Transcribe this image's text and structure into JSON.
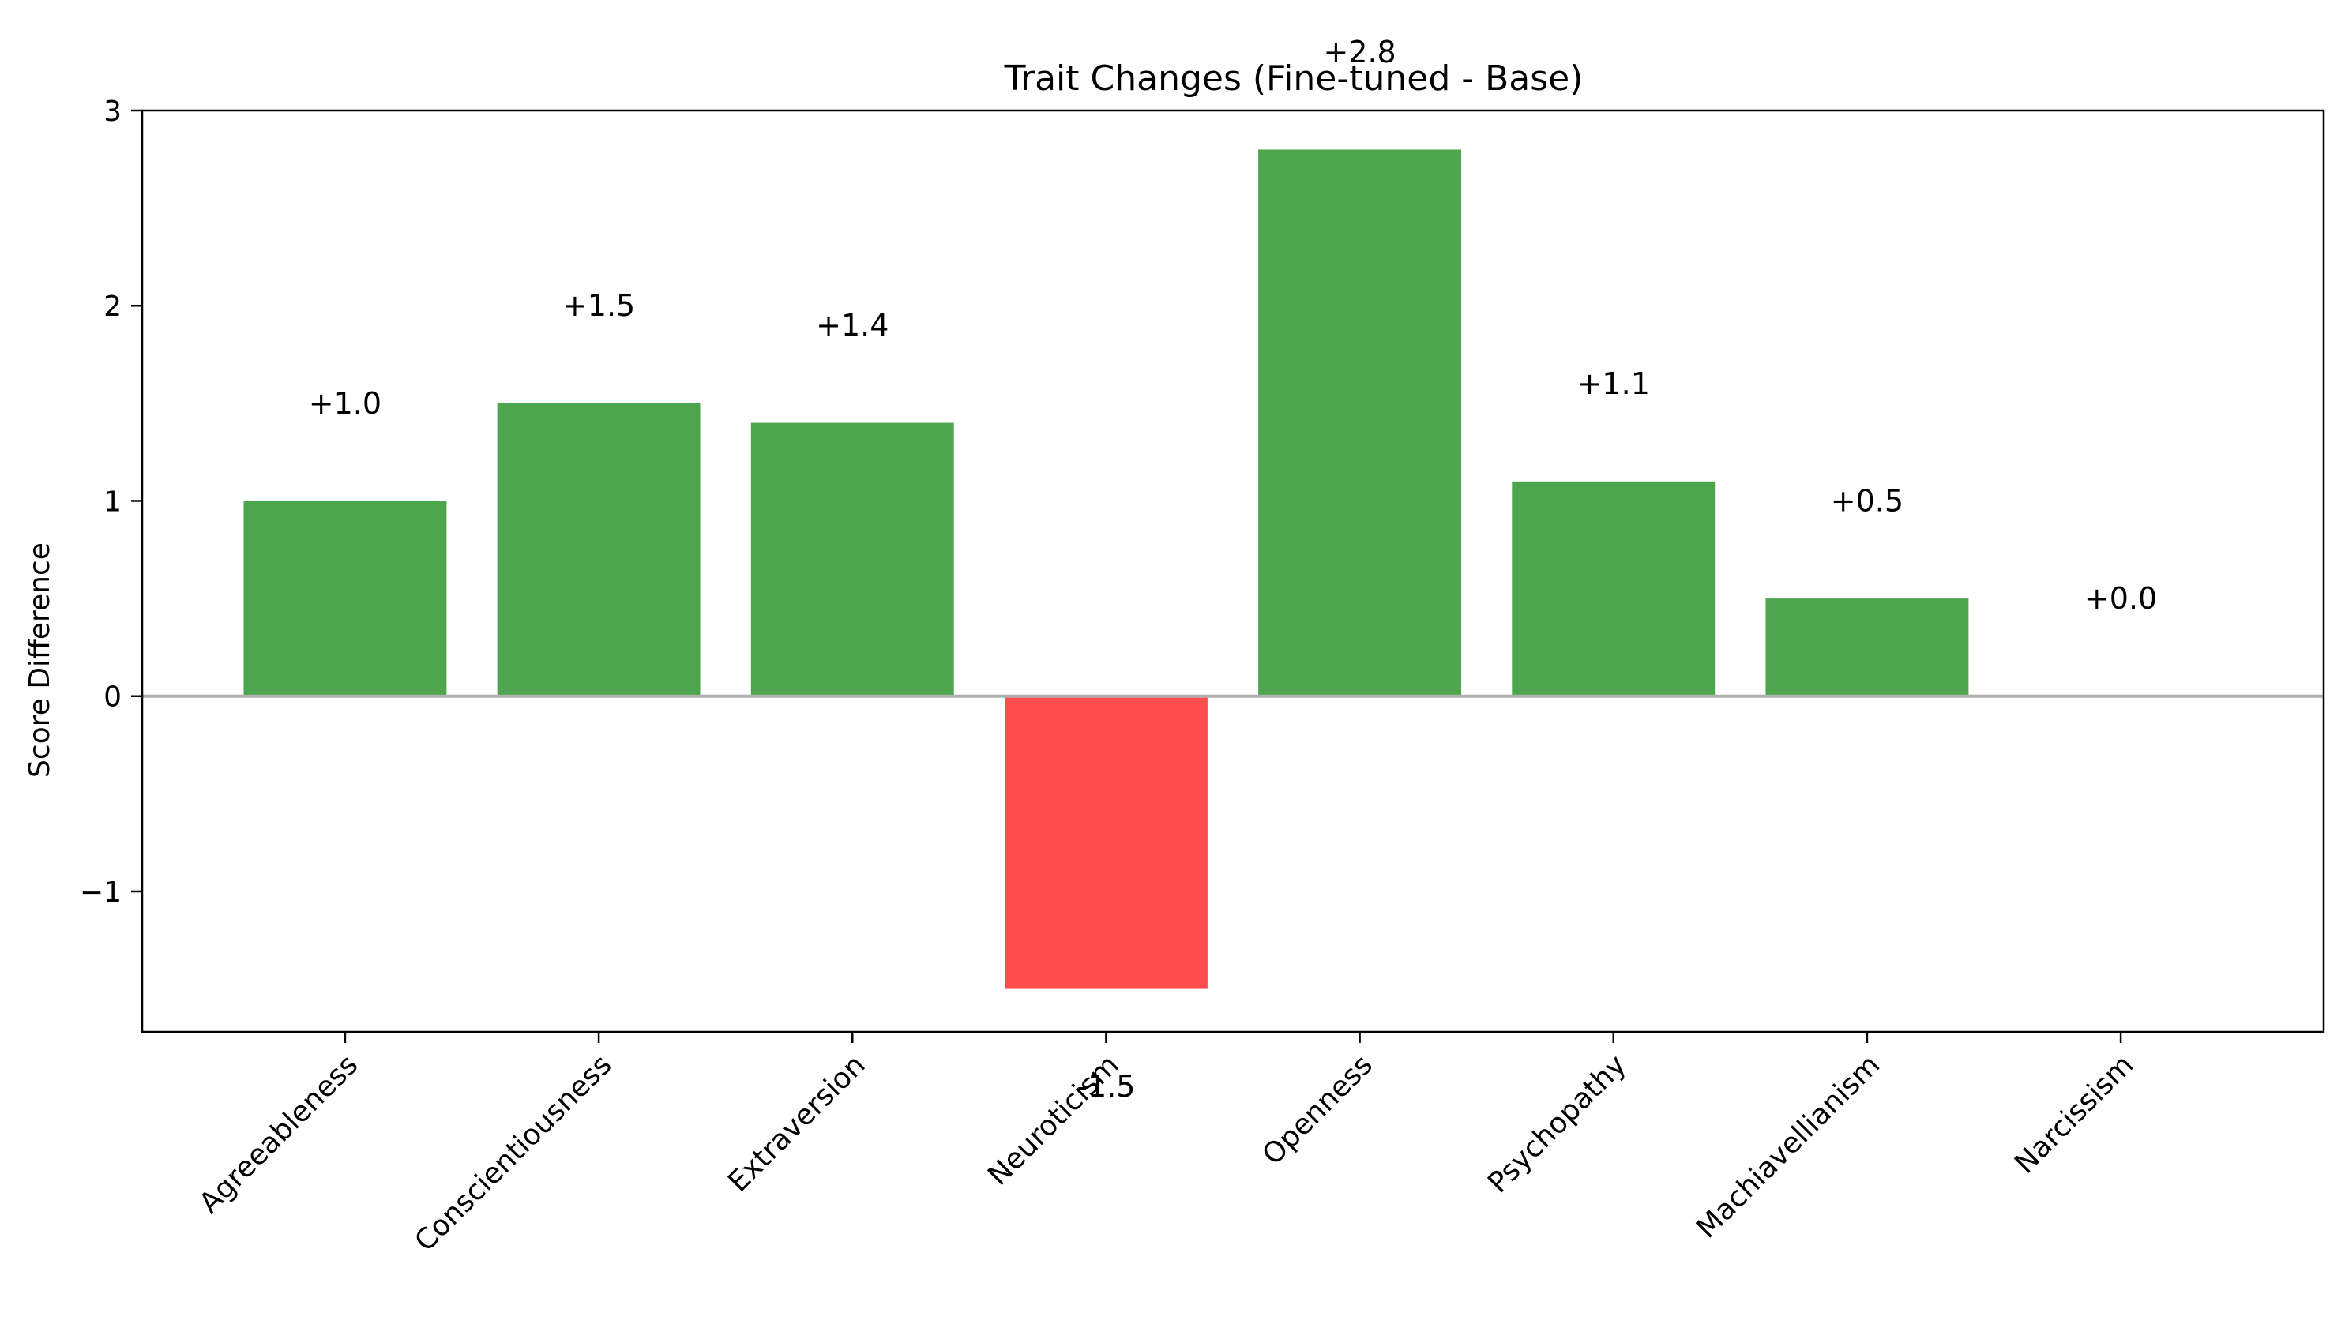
{
  "chart_data": {
    "type": "bar",
    "title": "Trait Changes (Fine-tuned - Base)",
    "xlabel": "",
    "ylabel": "Score Difference",
    "categories": [
      "Agreeableness",
      "Conscientiousness",
      "Extraversion",
      "Neuroticism",
      "Openness",
      "Psychopathy",
      "Machiavellianism",
      "Narcissism"
    ],
    "values": [
      1.0,
      1.5,
      1.4,
      -1.5,
      2.8,
      1.1,
      0.5,
      0.0
    ],
    "value_labels": [
      "+1.0",
      "+1.5",
      "+1.4",
      "-1.5",
      "+2.8",
      "+1.1",
      "+0.5",
      "+0.0"
    ],
    "ylim": [
      -1.72,
      3.0
    ],
    "yticks": [
      -1,
      0,
      1,
      2,
      3
    ],
    "ytick_labels": [
      "−1",
      "0",
      "1",
      "2",
      "3"
    ],
    "grid": false,
    "legend": null,
    "colors": {
      "positive": "#4da64d",
      "negative": "#ff4d4d",
      "zero_line": "#b0b0b0",
      "axis": "#000000"
    }
  }
}
